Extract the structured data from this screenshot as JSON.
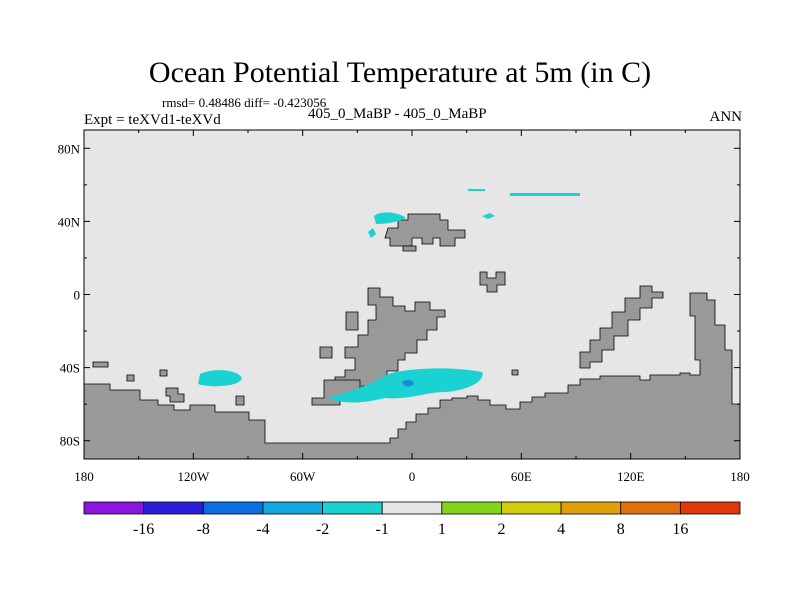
{
  "title": "Ocean Potential Temperature at 5m (in C)",
  "stats_line": "rmsd= 0.48486 diff= -0.423056",
  "left_label": "Expt = teXVd1-teXVd",
  "center_label": "405_0_MaBP - 405_0_MaBP",
  "right_label": "ANN",
  "map": {
    "lon_range": [
      -180,
      180
    ],
    "lat_range": [
      -90,
      90
    ],
    "x_ticks": [
      "180",
      "120W",
      "60W",
      "0",
      "60E",
      "120E",
      "180"
    ],
    "y_ticks": [
      "80N",
      "40N",
      "0",
      "40S",
      "80S"
    ],
    "land_color": "#999999",
    "ocean_color": "#e6e6e6",
    "anomaly_color": "#1ad2d2",
    "anomaly_dark_color": "#1a8fd8"
  },
  "colorbar": {
    "colors": [
      "#8a16e0",
      "#2a1fd6",
      "#0c6fe0",
      "#12a8e0",
      "#1ad2d2",
      "#e6e6e6",
      "#84d41a",
      "#d2cc0c",
      "#e0a00c",
      "#e0700c",
      "#e0380c"
    ],
    "labels": [
      "-16",
      "-8",
      "-4",
      "-2",
      "-1",
      "1",
      "2",
      "4",
      "8",
      "16"
    ]
  }
}
